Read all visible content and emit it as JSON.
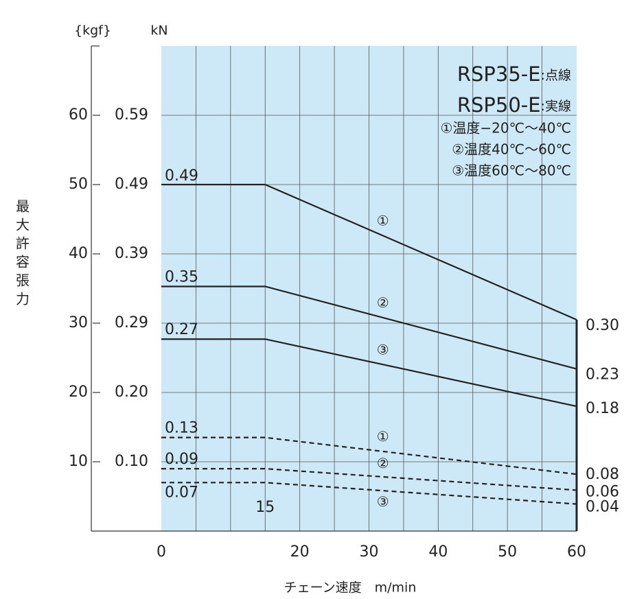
{
  "chart_data": {
    "type": "line",
    "y_unit_label": "{kgf}",
    "y2_unit_label": "kN",
    "ylabel": "最大許容張力",
    "xlabel": "チェーン速度　m/min",
    "x": [
      0,
      15,
      60
    ],
    "xlim": [
      0,
      60
    ],
    "xticks": [
      0,
      20,
      30,
      40,
      50,
      60
    ],
    "break_tick": 15,
    "xgrid": [
      5,
      10,
      15,
      20,
      25,
      30,
      35,
      40,
      45,
      50,
      55
    ],
    "ylim": [
      0,
      70
    ],
    "yticks": [
      10,
      20,
      30,
      40,
      50,
      60
    ],
    "y2lim": [
      0,
      0.6865
    ],
    "y2ticks": [
      {
        "value": 0.0981,
        "label": "0.10"
      },
      {
        "value": 0.1961,
        "label": "0.20"
      },
      {
        "value": 0.2942,
        "label": "0.29"
      },
      {
        "value": 0.3923,
        "label": "0.39"
      },
      {
        "value": 0.4903,
        "label": "0.49"
      },
      {
        "value": 0.5884,
        "label": "0.59"
      }
    ],
    "grid": true,
    "background": "#cde9f8",
    "legend": [
      {
        "model": "RSP35-E",
        "style": ":点線"
      },
      {
        "model": "RSP50-E",
        "style": ":実線"
      }
    ],
    "notes": [
      "①温度−20℃〜40℃",
      "②温度40℃〜60℃",
      "③温度60℃〜80℃"
    ],
    "series": [
      {
        "name": "①",
        "dashed": false,
        "color": "#222222",
        "values": [
          50,
          50,
          30.5
        ],
        "value_labels": [
          "0.49",
          null,
          "0.30"
        ]
      },
      {
        "name": "②",
        "dashed": false,
        "color": "#222222",
        "values": [
          35.3,
          35.3,
          23.4
        ],
        "value_labels": [
          "0.35",
          null,
          "0.23"
        ]
      },
      {
        "name": "③",
        "dashed": false,
        "color": "#222222",
        "values": [
          27.7,
          27.7,
          18
        ],
        "value_labels": [
          "0.27",
          null,
          "0.18"
        ]
      },
      {
        "name": "①",
        "dashed": true,
        "color": "#222222",
        "values": [
          13.5,
          13.5,
          8.2
        ],
        "value_labels": [
          "0.13",
          null,
          "0.08"
        ]
      },
      {
        "name": "②",
        "dashed": true,
        "color": "#222222",
        "values": [
          9,
          9,
          5.9
        ],
        "value_labels": [
          "0.09",
          null,
          "0.06"
        ]
      },
      {
        "name": "③",
        "dashed": true,
        "color": "#222222",
        "values": [
          7,
          7,
          3.9
        ],
        "value_labels": [
          "0.07",
          null,
          "0.04"
        ]
      }
    ]
  }
}
